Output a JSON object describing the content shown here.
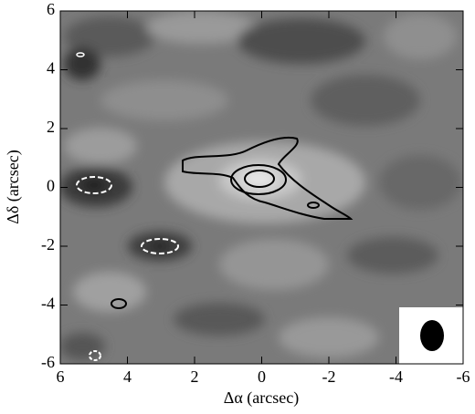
{
  "chart_data": {
    "type": "contour",
    "xlabel": "Δα (arcsec)",
    "ylabel": "Δδ (arcsec)",
    "xlim": [
      6,
      -6
    ],
    "ylim": [
      -6,
      6
    ],
    "xticks": [
      6,
      4,
      2,
      0,
      -2,
      -4,
      -6
    ],
    "yticks": [
      -6,
      -4,
      -2,
      0,
      2,
      4,
      6
    ]
  }
}
